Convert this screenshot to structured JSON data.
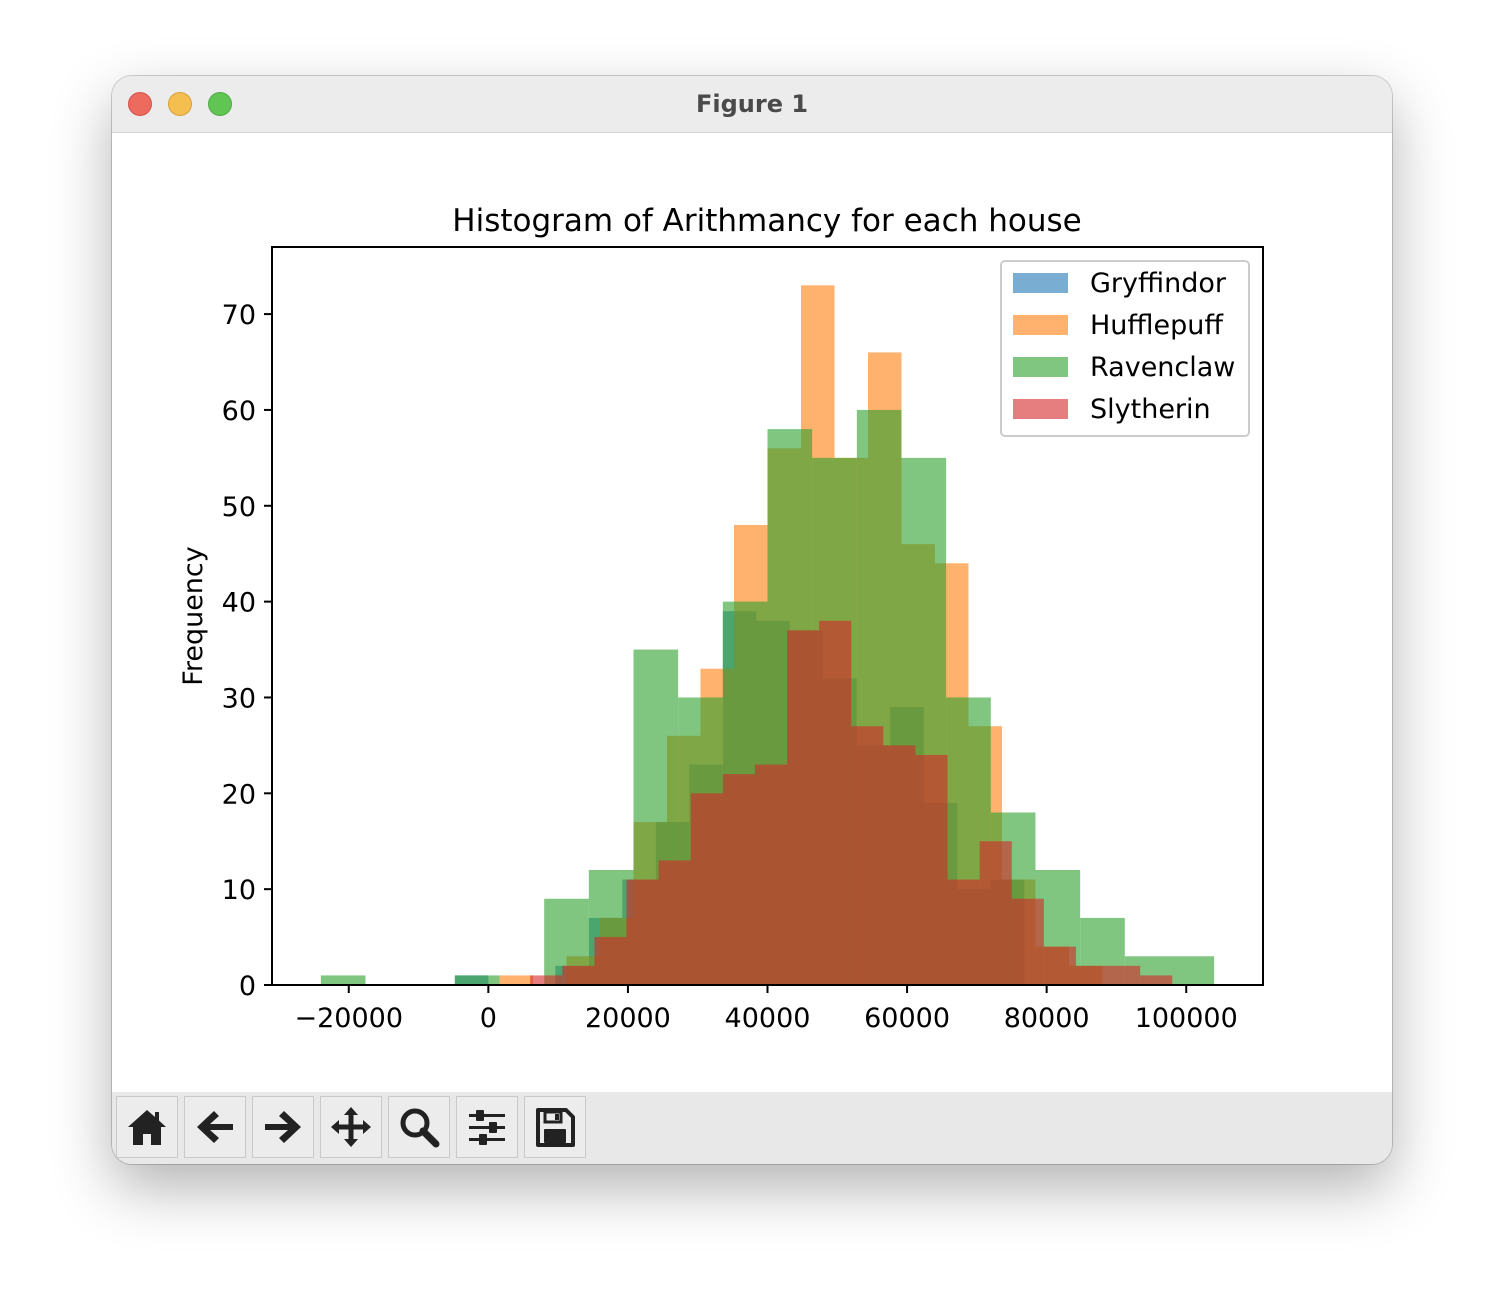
{
  "window": {
    "title": "Figure 1"
  },
  "toolbar": {
    "buttons": [
      {
        "name": "home",
        "icon": "home-icon"
      },
      {
        "name": "back",
        "icon": "arrow-left-icon"
      },
      {
        "name": "forward",
        "icon": "arrow-right-icon"
      },
      {
        "name": "pan",
        "icon": "move-icon"
      },
      {
        "name": "zoom",
        "icon": "search-icon"
      },
      {
        "name": "configure-subplots",
        "icon": "sliders-icon"
      },
      {
        "name": "save",
        "icon": "save-icon"
      }
    ]
  },
  "chart_data": {
    "type": "bar",
    "title": "Histogram of Arithmancy for each house",
    "xlabel": "",
    "ylabel": "Frequency",
    "xlim": [
      -31000,
      111000
    ],
    "ylim": [
      0,
      77
    ],
    "xticks": [
      -20000,
      0,
      20000,
      40000,
      60000,
      80000,
      100000
    ],
    "xtick_labels": [
      "−20000",
      "0",
      "20000",
      "40000",
      "60000",
      "80000",
      "100000"
    ],
    "yticks": [
      0,
      10,
      20,
      30,
      40,
      50,
      60,
      70
    ],
    "ytick_labels": [
      "0",
      "10",
      "20",
      "30",
      "40",
      "50",
      "60",
      "70"
    ],
    "legend_position": "top-right",
    "alpha": 0.6,
    "series": [
      {
        "name": "Gryffindor",
        "color": "#1f77b4",
        "edges": [
          -4800,
          0,
          4800,
          9600,
          14400,
          19200,
          24000,
          28800,
          33600,
          38400,
          43200,
          48000,
          52800,
          57600,
          62400,
          67200,
          72000,
          76800
        ],
        "counts": [
          1,
          0,
          0,
          2,
          7,
          11,
          17,
          23,
          39,
          38,
          37,
          32,
          25,
          29,
          19,
          10,
          11
        ]
      },
      {
        "name": "Hufflepuff",
        "color": "#ff7f0e",
        "edges": [
          1600,
          6400,
          11200,
          16000,
          20800,
          25600,
          30400,
          35200,
          40000,
          44800,
          49600,
          54400,
          59200,
          64000,
          68800,
          73600,
          78400,
          83200,
          88000
        ],
        "counts": [
          1,
          0,
          3,
          7,
          17,
          26,
          33,
          48,
          56,
          73,
          55,
          66,
          46,
          44,
          27,
          11,
          4,
          2
        ]
      },
      {
        "name": "Ravenclaw",
        "color": "#2ca02c",
        "edges": [
          -24000,
          -17600,
          -11200,
          -4800,
          1600,
          8000,
          14400,
          20800,
          27200,
          33600,
          40000,
          46400,
          52800,
          59200,
          65600,
          72000,
          78400,
          84800,
          91200,
          97600,
          104000
        ],
        "counts": [
          1,
          0,
          0,
          1,
          0,
          9,
          12,
          35,
          30,
          40,
          58,
          55,
          60,
          55,
          30,
          18,
          12,
          7,
          3,
          3
        ]
      },
      {
        "name": "Slytherin",
        "color": "#d62728",
        "edges": [
          6000,
          10600,
          15200,
          19800,
          24400,
          29000,
          33600,
          38200,
          42800,
          47400,
          52000,
          56600,
          61200,
          65800,
          70400,
          75000,
          79600,
          84200,
          88800,
          93400,
          98000
        ],
        "counts": [
          1,
          2,
          5,
          11,
          13,
          20,
          22,
          23,
          37,
          38,
          27,
          25,
          24,
          11,
          15,
          9,
          4,
          2,
          2,
          1
        ]
      }
    ]
  }
}
